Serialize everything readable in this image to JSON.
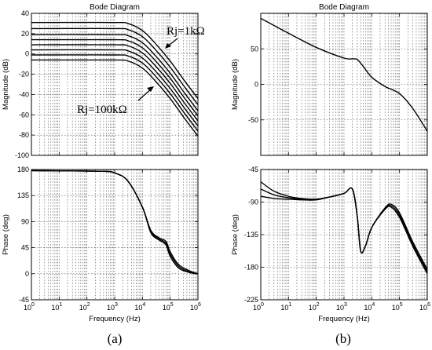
{
  "chart_data": [
    {
      "type": "line",
      "panel": "a-magnitude",
      "title": "Bode Diagram",
      "xlabel": "",
      "ylabel": "Magnitude (dB)",
      "xscale": "log",
      "xlim": [
        1,
        1000000
      ],
      "ylim": [
        -100,
        40
      ],
      "yticks": [
        -100,
        -80,
        -60,
        -40,
        -20,
        0,
        20,
        40
      ],
      "grid": true,
      "annotations": [
        "Rj=1kΩ",
        "Rj=100kΩ"
      ],
      "series": [
        {
          "x": [
            1,
            1000,
            3000,
            10000,
            30000,
            100000,
            300000,
            1000000
          ],
          "y": [
            31,
            31,
            30,
            23,
            10,
            -7,
            -25,
            -44
          ]
        },
        {
          "x": [
            1,
            1000,
            3000,
            10000,
            30000,
            100000,
            300000,
            1000000
          ],
          "y": [
            25,
            25,
            24,
            17,
            4,
            -13,
            -31,
            -50
          ]
        },
        {
          "x": [
            1,
            1000,
            3000,
            10000,
            30000,
            100000,
            300000,
            1000000
          ],
          "y": [
            19,
            19,
            18,
            11,
            -2,
            -19,
            -37,
            -56
          ]
        },
        {
          "x": [
            1,
            1000,
            3000,
            10000,
            30000,
            100000,
            300000,
            1000000
          ],
          "y": [
            14,
            14,
            13,
            6,
            -7,
            -24,
            -42,
            -61
          ]
        },
        {
          "x": [
            1,
            1000,
            3000,
            10000,
            30000,
            100000,
            300000,
            1000000
          ],
          "y": [
            9,
            9,
            8,
            1,
            -12,
            -29,
            -47,
            -66
          ]
        },
        {
          "x": [
            1,
            1000,
            3000,
            10000,
            30000,
            100000,
            300000,
            1000000
          ],
          "y": [
            4,
            4,
            3,
            -4,
            -17,
            -34,
            -52,
            -71
          ]
        },
        {
          "x": [
            1,
            1000,
            3000,
            10000,
            30000,
            100000,
            300000,
            1000000
          ],
          "y": [
            -1,
            -1,
            -2,
            -9,
            -22,
            -39,
            -57,
            -76
          ]
        },
        {
          "x": [
            1,
            1000,
            3000,
            10000,
            30000,
            100000,
            300000,
            1000000
          ],
          "y": [
            -6,
            -6,
            -7,
            -14,
            -27,
            -44,
            -62,
            -81
          ]
        }
      ]
    },
    {
      "type": "line",
      "panel": "a-phase",
      "title": "",
      "xlabel": "Frequency (Hz)",
      "ylabel": "Phase (deg)",
      "xscale": "log",
      "xlim": [
        1,
        1000000
      ],
      "ylim": [
        -45,
        180
      ],
      "yticks": [
        -45,
        0,
        45,
        90,
        135,
        180
      ],
      "grid": true,
      "series": [
        {
          "x": [
            1,
            300,
            1000,
            3000,
            10000,
            20000,
            40000,
            70000,
            100000,
            200000,
            500000,
            1000000
          ],
          "y": [
            178,
            177,
            174,
            160,
            115,
            75,
            62,
            56,
            38,
            16,
            5,
            0
          ]
        },
        {
          "x": [
            1,
            300,
            1000,
            3000,
            10000,
            20000,
            40000,
            70000,
            100000,
            200000,
            500000,
            1000000
          ],
          "y": [
            178,
            177,
            174,
            160,
            115,
            73,
            60,
            53,
            34,
            13,
            3,
            0
          ]
        },
        {
          "x": [
            1,
            300,
            1000,
            3000,
            10000,
            20000,
            40000,
            70000,
            100000,
            200000,
            500000,
            1000000
          ],
          "y": [
            178,
            177,
            174,
            160,
            115,
            71,
            58,
            50,
            30,
            10,
            2,
            0
          ]
        }
      ]
    },
    {
      "type": "line",
      "panel": "b-magnitude",
      "title": "Bode Diagram",
      "xlabel": "",
      "ylabel": "Magnitude (dB)",
      "xscale": "log",
      "xlim": [
        1,
        1000000
      ],
      "ylim": [
        -100,
        100
      ],
      "yticks": [
        -50,
        0,
        50
      ],
      "grid": true,
      "series": [
        {
          "x": [
            1,
            10,
            100,
            1000,
            2000,
            3000,
            5000,
            10000,
            30000,
            100000,
            300000,
            1000000
          ],
          "y": [
            93,
            72,
            52,
            37,
            36,
            35,
            25,
            10,
            -3,
            -13,
            -34,
            -66
          ]
        }
      ]
    },
    {
      "type": "line",
      "panel": "b-phase",
      "title": "",
      "xlabel": "Frequency (Hz)",
      "ylabel": "Phase (deg)",
      "xscale": "log",
      "xlim": [
        1,
        1000000
      ],
      "ylim": [
        -225,
        -45
      ],
      "yticks": [
        -225,
        -180,
        -135,
        -90,
        -45
      ],
      "grid": true,
      "series": [
        {
          "x": [
            1,
            3,
            10,
            30,
            100,
            300,
            1000,
            2000,
            3000,
            4000,
            6000,
            10000,
            30000,
            50000,
            100000,
            300000,
            1000000
          ],
          "y": [
            -62,
            -75,
            -82,
            -85,
            -86,
            -83,
            -78,
            -72,
            -110,
            -158,
            -150,
            -125,
            -98,
            -93,
            -105,
            -145,
            -183
          ]
        },
        {
          "x": [
            1,
            3,
            10,
            30,
            100,
            300,
            1000,
            2000,
            3000,
            4000,
            6000,
            10000,
            30000,
            50000,
            100000,
            300000,
            1000000
          ],
          "y": [
            -72,
            -80,
            -84,
            -86,
            -86,
            -83,
            -78,
            -72,
            -110,
            -158,
            -150,
            -125,
            -99,
            -95,
            -108,
            -148,
            -186
          ]
        },
        {
          "x": [
            1,
            3,
            10,
            30,
            100,
            300,
            1000,
            2000,
            3000,
            4000,
            6000,
            10000,
            30000,
            50000,
            100000,
            300000,
            1000000
          ],
          "y": [
            -82,
            -85,
            -86,
            -87,
            -87,
            -83,
            -78,
            -72,
            -110,
            -158,
            -150,
            -125,
            -100,
            -97,
            -111,
            -151,
            -189
          ]
        }
      ]
    }
  ],
  "captions": {
    "a": "(a)",
    "b": "(b)"
  }
}
